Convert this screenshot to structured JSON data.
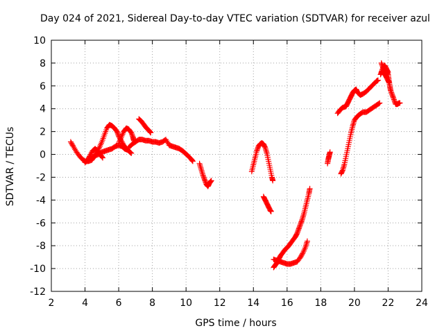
{
  "chart_data": {
    "type": "scatter",
    "title": "Day 024 of 2021, Sidereal Day-to-day VTEC variation (SDTVAR) for receiver azul",
    "xlabel": "GPS time / hours",
    "ylabel": "SDTVAR / TECUs",
    "xlim": [
      2,
      24
    ],
    "ylim": [
      -12,
      10
    ],
    "xticks": [
      2,
      4,
      6,
      8,
      10,
      12,
      14,
      16,
      18,
      20,
      22,
      24
    ],
    "yticks": [
      -12,
      -10,
      -8,
      -6,
      -4,
      -2,
      0,
      2,
      4,
      6,
      8,
      10
    ],
    "grid": true,
    "marker": "+",
    "series": [
      {
        "name": "SDTVAR",
        "color": "#ff0000",
        "segments": [
          [
            [
              3.15,
              1.1
            ],
            [
              3.3,
              0.7
            ],
            [
              3.5,
              0.2
            ],
            [
              3.7,
              -0.2
            ],
            [
              3.9,
              -0.5
            ],
            [
              4.0,
              -0.6
            ],
            [
              4.2,
              -0.6
            ],
            [
              4.4,
              -0.5
            ],
            [
              4.55,
              -0.2
            ],
            [
              4.7,
              0.2
            ],
            [
              4.85,
              0.6
            ],
            [
              5.0,
              1.1
            ],
            [
              5.15,
              1.7
            ],
            [
              5.3,
              2.3
            ],
            [
              5.45,
              2.6
            ],
            [
              5.6,
              2.5
            ],
            [
              5.75,
              2.3
            ],
            [
              5.9,
              2.0
            ],
            [
              6.0,
              1.6
            ],
            [
              6.15,
              1.2
            ],
            [
              6.3,
              0.8
            ],
            [
              6.45,
              0.5
            ],
            [
              6.6,
              0.3
            ],
            [
              6.75,
              0.1
            ]
          ],
          [
            [
              4.0,
              -0.7
            ],
            [
              4.2,
              -0.5
            ],
            [
              4.4,
              -0.3
            ],
            [
              4.6,
              -0.1
            ],
            [
              4.8,
              0.0
            ],
            [
              5.0,
              0.2
            ],
            [
              5.2,
              0.3
            ],
            [
              5.4,
              0.4
            ],
            [
              5.6,
              0.5
            ],
            [
              5.8,
              0.7
            ],
            [
              6.0,
              0.8
            ],
            [
              6.2,
              0.7
            ],
            [
              6.35,
              0.5
            ],
            [
              6.5,
              0.4
            ]
          ],
          [
            [
              4.2,
              -0.4
            ],
            [
              4.3,
              -0.1
            ],
            [
              4.45,
              0.3
            ],
            [
              4.6,
              0.5
            ],
            [
              4.75,
              0.3
            ],
            [
              4.9,
              0.0
            ],
            [
              5.05,
              -0.3
            ]
          ],
          [
            [
              6.0,
              1.0
            ],
            [
              6.15,
              1.5
            ],
            [
              6.3,
              2.0
            ],
            [
              6.45,
              2.3
            ],
            [
              6.6,
              2.2
            ],
            [
              6.75,
              1.9
            ],
            [
              6.85,
              1.5
            ],
            [
              6.9,
              1.2
            ]
          ],
          [
            [
              7.2,
              3.1
            ],
            [
              7.35,
              2.9
            ],
            [
              7.5,
              2.6
            ],
            [
              7.65,
              2.3
            ],
            [
              7.8,
              2.1
            ],
            [
              7.9,
              1.9
            ]
          ],
          [
            [
              6.6,
              0.6
            ],
            [
              6.8,
              0.9
            ],
            [
              7.0,
              1.1
            ],
            [
              7.2,
              1.3
            ],
            [
              7.4,
              1.3
            ],
            [
              7.6,
              1.2
            ],
            [
              7.8,
              1.2
            ],
            [
              8.0,
              1.1
            ],
            [
              8.2,
              1.1
            ],
            [
              8.4,
              1.0
            ],
            [
              8.6,
              1.1
            ],
            [
              8.8,
              1.3
            ],
            [
              9.0,
              0.8
            ],
            [
              9.2,
              0.7
            ],
            [
              9.4,
              0.6
            ],
            [
              9.6,
              0.5
            ],
            [
              9.8,
              0.3
            ],
            [
              9.95,
              0.1
            ],
            [
              10.1,
              -0.1
            ],
            [
              10.3,
              -0.4
            ],
            [
              10.4,
              -0.6
            ]
          ],
          [
            [
              10.8,
              -0.8
            ],
            [
              10.9,
              -1.3
            ],
            [
              11.0,
              -1.8
            ],
            [
              11.1,
              -2.2
            ],
            [
              11.2,
              -2.6
            ],
            [
              11.3,
              -2.8
            ],
            [
              11.4,
              -2.5
            ],
            [
              11.5,
              -2.3
            ]
          ],
          [
            [
              13.9,
              -1.5
            ],
            [
              14.0,
              -0.9
            ],
            [
              14.1,
              -0.3
            ],
            [
              14.2,
              0.3
            ],
            [
              14.3,
              0.7
            ],
            [
              14.4,
              0.9
            ],
            [
              14.5,
              1.0
            ],
            [
              14.6,
              0.9
            ],
            [
              14.7,
              0.6
            ],
            [
              14.8,
              0.1
            ],
            [
              14.9,
              -0.6
            ],
            [
              15.0,
              -1.3
            ],
            [
              15.1,
              -2.0
            ],
            [
              15.15,
              -2.3
            ]
          ],
          [
            [
              14.6,
              -3.7
            ],
            [
              14.7,
              -4.0
            ],
            [
              14.8,
              -4.3
            ],
            [
              14.9,
              -4.6
            ],
            [
              15.0,
              -4.9
            ],
            [
              15.05,
              -5.0
            ]
          ],
          [
            [
              15.2,
              -9.9
            ],
            [
              15.3,
              -9.7
            ],
            [
              15.4,
              -9.5
            ],
            [
              15.5,
              -9.2
            ],
            [
              15.6,
              -8.9
            ],
            [
              15.75,
              -8.6
            ],
            [
              15.9,
              -8.3
            ],
            [
              16.05,
              -8.1
            ],
            [
              16.2,
              -7.8
            ],
            [
              16.35,
              -7.5
            ],
            [
              16.5,
              -7.2
            ],
            [
              16.6,
              -6.9
            ],
            [
              16.7,
              -6.5
            ],
            [
              16.8,
              -6.1
            ],
            [
              16.9,
              -5.7
            ],
            [
              17.0,
              -5.2
            ],
            [
              17.1,
              -4.6
            ],
            [
              17.2,
              -4.0
            ],
            [
              17.3,
              -3.4
            ],
            [
              17.35,
              -3.0
            ]
          ],
          [
            [
              15.2,
              -9.2
            ],
            [
              15.4,
              -9.3
            ],
            [
              15.6,
              -9.4
            ],
            [
              15.8,
              -9.5
            ],
            [
              16.0,
              -9.6
            ],
            [
              16.2,
              -9.6
            ],
            [
              16.4,
              -9.5
            ],
            [
              16.6,
              -9.4
            ],
            [
              16.8,
              -9.0
            ],
            [
              16.95,
              -8.6
            ],
            [
              17.1,
              -8.1
            ],
            [
              17.2,
              -7.6
            ]
          ],
          [
            [
              18.4,
              -0.8
            ],
            [
              18.45,
              -0.4
            ],
            [
              18.5,
              -0.1
            ],
            [
              18.55,
              0.2
            ]
          ],
          [
            [
              19.0,
              3.6
            ],
            [
              19.15,
              3.9
            ],
            [
              19.3,
              4.1
            ],
            [
              19.5,
              4.2
            ],
            [
              19.6,
              4.5
            ],
            [
              19.7,
              4.8
            ],
            [
              19.8,
              5.1
            ],
            [
              19.9,
              5.4
            ],
            [
              20.0,
              5.6
            ],
            [
              20.1,
              5.7
            ],
            [
              20.2,
              5.4
            ],
            [
              20.35,
              5.2
            ],
            [
              20.5,
              5.3
            ],
            [
              20.7,
              5.5
            ],
            [
              20.9,
              5.8
            ],
            [
              21.1,
              6.1
            ],
            [
              21.3,
              6.4
            ],
            [
              21.4,
              6.5
            ]
          ],
          [
            [
              19.2,
              -1.7
            ],
            [
              19.3,
              -1.4
            ],
            [
              19.4,
              -0.9
            ],
            [
              19.5,
              -0.2
            ],
            [
              19.6,
              0.5
            ],
            [
              19.7,
              1.2
            ],
            [
              19.8,
              1.9
            ],
            [
              19.9,
              2.5
            ],
            [
              20.0,
              3.0
            ],
            [
              20.15,
              3.3
            ],
            [
              20.3,
              3.5
            ],
            [
              20.5,
              3.7
            ],
            [
              20.7,
              3.7
            ],
            [
              20.9,
              3.9
            ],
            [
              21.1,
              4.1
            ],
            [
              21.3,
              4.3
            ],
            [
              21.5,
              4.5
            ]
          ],
          [
            [
              21.6,
              8.0
            ],
            [
              21.7,
              7.6
            ],
            [
              21.8,
              7.4
            ],
            [
              21.9,
              7.3
            ],
            [
              22.0,
              7.0
            ],
            [
              22.05,
              6.5
            ],
            [
              22.1,
              6.0
            ],
            [
              22.15,
              5.6
            ],
            [
              22.25,
              5.2
            ],
            [
              22.35,
              4.8
            ],
            [
              22.45,
              4.4
            ],
            [
              22.55,
              4.4
            ],
            [
              22.65,
              4.5
            ],
            [
              22.7,
              4.5
            ]
          ],
          [
            [
              21.6,
              7.2
            ],
            [
              21.7,
              7.6
            ],
            [
              21.8,
              7.8
            ],
            [
              21.9,
              7.5
            ],
            [
              22.0,
              7.2
            ]
          ],
          [
            [
              21.55,
              7.0
            ],
            [
              21.65,
              7.3
            ],
            [
              21.75,
              7.1
            ],
            [
              21.85,
              6.9
            ],
            [
              21.95,
              6.6
            ],
            [
              22.05,
              6.3
            ]
          ]
        ]
      }
    ]
  }
}
